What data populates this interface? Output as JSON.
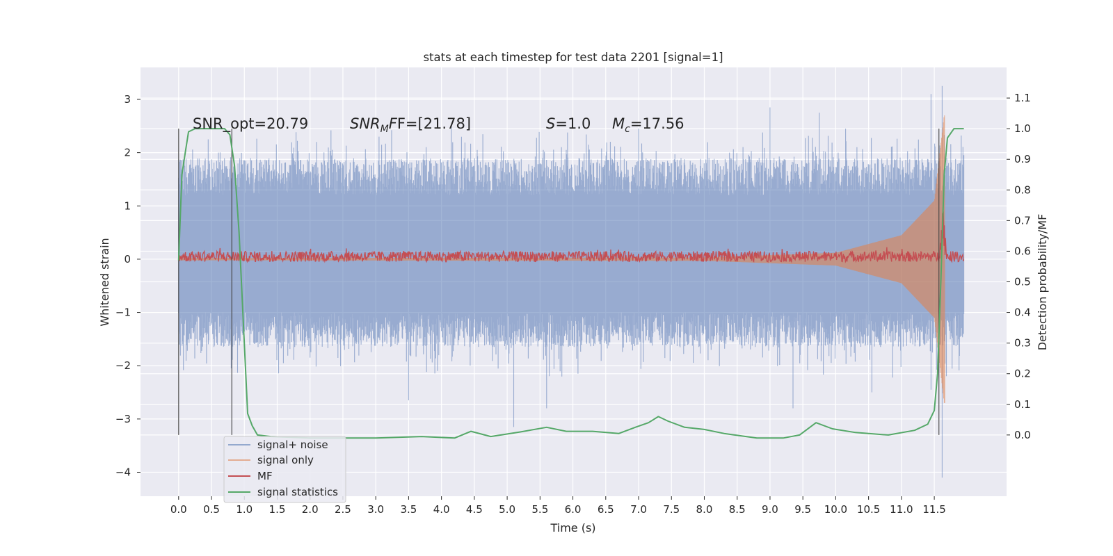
{
  "chart_data": {
    "type": "line",
    "title": "stats at each timestep for test data 2201 [signal=1]",
    "xlabel": "Time (s)",
    "ylabel": "Whitened strain",
    "y2label": "Detection probability/MF",
    "xlim": [
      -0.58,
      12.6
    ],
    "ylim": [
      -4.45,
      3.6
    ],
    "y2lim": [
      -0.2,
      1.2
    ],
    "x_ticks": [
      0.0,
      0.5,
      1.0,
      1.5,
      2.0,
      2.5,
      3.0,
      3.5,
      4.0,
      4.5,
      5.0,
      5.5,
      6.0,
      6.5,
      7.0,
      7.5,
      8.0,
      8.5,
      9.0,
      9.5,
      10.0,
      10.5,
      11.0,
      11.5
    ],
    "x_tick_labels": [
      "0.0",
      "0.5",
      "1.0",
      "1.5",
      "2.0",
      "2.5",
      "3.0",
      "3.5",
      "4.0",
      "4.5",
      "5.0",
      "5.5",
      "6.0",
      "6.5",
      "7.0",
      "7.5",
      "8.0",
      "8.5",
      "9.0",
      "9.5",
      "10.0",
      "10.5",
      "11.0",
      "11.5"
    ],
    "y_ticks": [
      3,
      2,
      1,
      0,
      -1,
      -2,
      -3,
      -4
    ],
    "y_tick_labels": [
      "3",
      "2",
      "1",
      "0",
      "−1",
      "−2",
      "−3",
      "−4"
    ],
    "y2_ticks": [
      1.1,
      1.0,
      0.9,
      0.8,
      0.7,
      0.6,
      0.5,
      0.4,
      0.3,
      0.2,
      0.1,
      0.0
    ],
    "y2_tick_labels": [
      "1.1",
      "1.0",
      "0.9",
      "0.8",
      "0.7",
      "0.6",
      "0.5",
      "0.4",
      "0.3",
      "0.2",
      "0.1",
      "0.0"
    ],
    "grid": true,
    "legend_position": "lower-left",
    "annotations": {
      "snr_opt": "SNR_opt=20.79",
      "snr_mf_base": "SNR",
      "snr_mf_sub": "M",
      "snr_mf_rest": "F=[21.78]",
      "s_sym": "S",
      "s_val": "=1.0",
      "mc_sym": "M",
      "mc_sub": "c",
      "mc_val": "=17.56"
    },
    "vertical_lines": [
      {
        "x": 0.0,
        "y2_range": [
          0.0,
          1.0
        ]
      },
      {
        "x": 0.81,
        "y2_range": [
          0.0,
          1.0
        ]
      },
      {
        "x": 11.57,
        "y2_range": [
          0.0,
          1.0
        ]
      }
    ],
    "series": [
      {
        "name": "signal+ noise",
        "color": "#4c72b0",
        "axis": "left",
        "kind": "noise",
        "x_range": [
          0.0,
          11.95
        ],
        "typical_envelope": [
          -1.0,
          1.2
        ],
        "peaks": [
          {
            "x": 0.45,
            "y": 2.25
          },
          {
            "x": 2.1,
            "y": 2.2
          },
          {
            "x": 3.05,
            "y": 2.3
          },
          {
            "x": 4.15,
            "y": 2.5
          },
          {
            "x": 5.55,
            "y": 2.05
          },
          {
            "x": 7.0,
            "y": 2.45
          },
          {
            "x": 9.0,
            "y": 2.85
          },
          {
            "x": 9.75,
            "y": 2.75
          },
          {
            "x": 10.15,
            "y": 2.45
          },
          {
            "x": 11.45,
            "y": 3.1
          },
          {
            "x": 11.62,
            "y": 3.25
          }
        ],
        "troughs": [
          {
            "x": 0.8,
            "y": -2.05
          },
          {
            "x": 3.5,
            "y": -2.65
          },
          {
            "x": 5.1,
            "y": -3.15
          },
          {
            "x": 5.6,
            "y": -2.8
          },
          {
            "x": 9.35,
            "y": -2.8
          },
          {
            "x": 10.55,
            "y": -2.5
          },
          {
            "x": 11.45,
            "y": -2.45
          },
          {
            "x": 11.62,
            "y": -4.1
          }
        ]
      },
      {
        "name": "signal only",
        "color": "#dd8452",
        "axis": "left",
        "kind": "chirp",
        "x_range": [
          0.0,
          11.66
        ],
        "amplitude": [
          {
            "x": 0.0,
            "y": 0.02
          },
          {
            "x": 8.0,
            "y": 0.03
          },
          {
            "x": 10.0,
            "y": 0.12
          },
          {
            "x": 11.0,
            "y": 0.45
          },
          {
            "x": 11.5,
            "y": 1.1
          },
          {
            "x": 11.65,
            "y": 2.7
          }
        ]
      },
      {
        "name": "MF",
        "color": "#c44e52",
        "axis": "left",
        "kind": "mf",
        "x_range": [
          0.0,
          11.95
        ],
        "baseline": 0.05,
        "spread": [
          -0.05,
          0.15
        ],
        "peak": {
          "x": 11.63,
          "y": 1.0
        }
      },
      {
        "name": "signal statistics",
        "color": "#55a868",
        "axis": "right",
        "kind": "line",
        "points": [
          {
            "x": 0.0,
            "y": 0.57
          },
          {
            "x": 0.05,
            "y": 0.85
          },
          {
            "x": 0.1,
            "y": 0.92
          },
          {
            "x": 0.15,
            "y": 0.99
          },
          {
            "x": 0.25,
            "y": 1.0
          },
          {
            "x": 0.7,
            "y": 1.0
          },
          {
            "x": 0.78,
            "y": 0.98
          },
          {
            "x": 0.85,
            "y": 0.88
          },
          {
            "x": 0.92,
            "y": 0.66
          },
          {
            "x": 1.0,
            "y": 0.3
          },
          {
            "x": 1.05,
            "y": 0.07
          },
          {
            "x": 1.12,
            "y": 0.03
          },
          {
            "x": 1.2,
            "y": 0.0
          },
          {
            "x": 1.4,
            "y": -0.005
          },
          {
            "x": 2.0,
            "y": -0.01
          },
          {
            "x": 3.0,
            "y": -0.01
          },
          {
            "x": 3.7,
            "y": -0.005
          },
          {
            "x": 4.2,
            "y": -0.01
          },
          {
            "x": 4.45,
            "y": 0.012
          },
          {
            "x": 4.75,
            "y": -0.005
          },
          {
            "x": 5.2,
            "y": 0.01
          },
          {
            "x": 5.6,
            "y": 0.025
          },
          {
            "x": 5.9,
            "y": 0.012
          },
          {
            "x": 6.3,
            "y": 0.012
          },
          {
            "x": 6.7,
            "y": 0.005
          },
          {
            "x": 6.95,
            "y": 0.025
          },
          {
            "x": 7.15,
            "y": 0.04
          },
          {
            "x": 7.3,
            "y": 0.06
          },
          {
            "x": 7.45,
            "y": 0.045
          },
          {
            "x": 7.7,
            "y": 0.025
          },
          {
            "x": 8.0,
            "y": 0.018
          },
          {
            "x": 8.3,
            "y": 0.005
          },
          {
            "x": 8.8,
            "y": -0.01
          },
          {
            "x": 9.2,
            "y": -0.01
          },
          {
            "x": 9.45,
            "y": 0.0
          },
          {
            "x": 9.7,
            "y": 0.04
          },
          {
            "x": 9.95,
            "y": 0.02
          },
          {
            "x": 10.3,
            "y": 0.008
          },
          {
            "x": 10.8,
            "y": 0.0
          },
          {
            "x": 11.2,
            "y": 0.015
          },
          {
            "x": 11.4,
            "y": 0.035
          },
          {
            "x": 11.5,
            "y": 0.08
          },
          {
            "x": 11.55,
            "y": 0.2
          },
          {
            "x": 11.6,
            "y": 0.5
          },
          {
            "x": 11.65,
            "y": 0.85
          },
          {
            "x": 11.7,
            "y": 0.97
          },
          {
            "x": 11.8,
            "y": 1.0
          },
          {
            "x": 11.95,
            "y": 1.0
          }
        ]
      }
    ]
  }
}
